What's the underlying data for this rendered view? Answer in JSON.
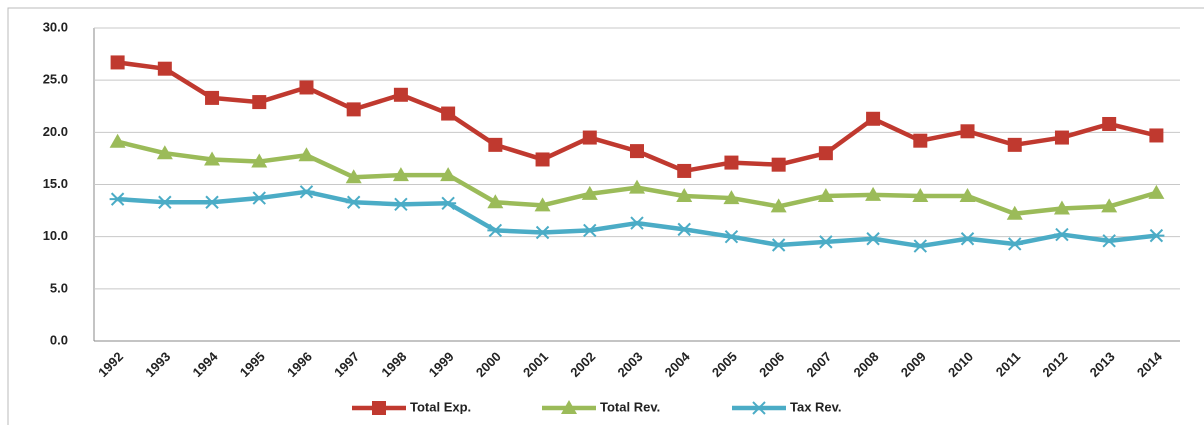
{
  "chart_data": {
    "type": "line",
    "categories": [
      "1992",
      "1993",
      "1994",
      "1995",
      "1996",
      "1997",
      "1998",
      "1999",
      "2000",
      "2001",
      "2002",
      "2003",
      "2004",
      "2005",
      "2006",
      "2007",
      "2008",
      "2009",
      "2010",
      "2011",
      "2012",
      "2013",
      "2014"
    ],
    "series": [
      {
        "name": "Total Exp.",
        "color": "#c0392f",
        "marker": "square",
        "values": [
          26.7,
          26.1,
          23.3,
          22.9,
          24.3,
          22.2,
          23.6,
          21.8,
          18.8,
          17.4,
          19.5,
          18.2,
          16.3,
          17.1,
          16.9,
          18.0,
          21.3,
          19.2,
          20.1,
          18.8,
          19.5,
          20.8,
          19.7
        ]
      },
      {
        "name": "Total Rev.",
        "color": "#9bbb59",
        "marker": "triangle",
        "values": [
          19.1,
          18.0,
          17.4,
          17.2,
          17.8,
          15.7,
          15.9,
          15.9,
          13.3,
          13.0,
          14.1,
          14.7,
          13.9,
          13.7,
          12.9,
          13.9,
          14.0,
          13.9,
          13.9,
          12.2,
          12.7,
          12.9,
          14.2
        ]
      },
      {
        "name": "Tax Rev.",
        "color": "#4bacc6",
        "marker": "star",
        "values": [
          13.6,
          13.3,
          13.3,
          13.7,
          14.3,
          13.3,
          13.1,
          13.2,
          10.6,
          10.4,
          10.6,
          11.3,
          10.7,
          10.0,
          9.2,
          9.5,
          9.8,
          9.1,
          9.8,
          9.3,
          10.2,
          9.6,
          10.1
        ]
      }
    ],
    "ylim": [
      0,
      30
    ],
    "yticks": [
      {
        "value": 0,
        "label": "0.0"
      },
      {
        "value": 5,
        "label": "5.0"
      },
      {
        "value": 10,
        "label": "10.0"
      },
      {
        "value": 15,
        "label": "15.0"
      },
      {
        "value": 20,
        "label": "20.0"
      },
      {
        "value": 25,
        "label": "25.0"
      },
      {
        "value": 30,
        "label": "30.0"
      }
    ],
    "grid": true,
    "legend": "bottom"
  }
}
